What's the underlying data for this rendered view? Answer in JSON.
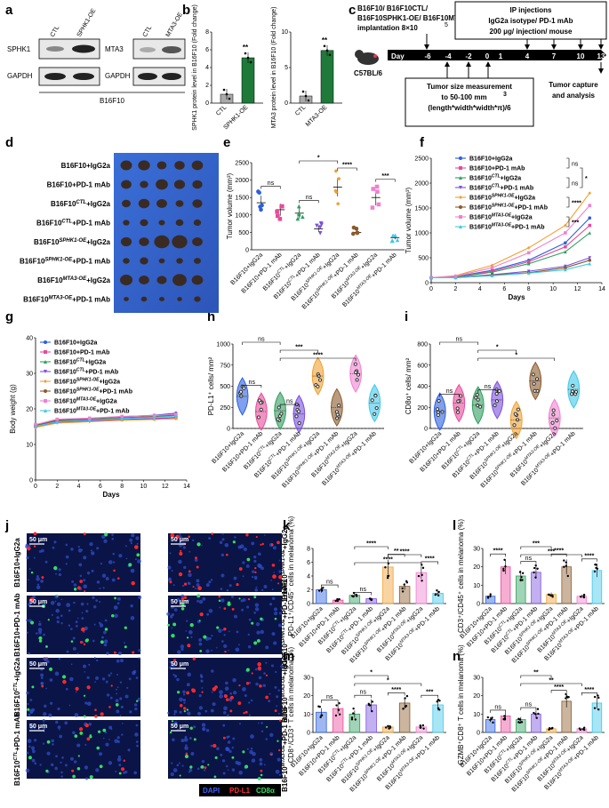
{
  "panels": [
    "a",
    "b",
    "c",
    "d",
    "e",
    "f",
    "g",
    "h",
    "i",
    "j",
    "k",
    "l",
    "m",
    "n"
  ],
  "colors": {
    "blue": "#2b5fe0",
    "pink": "#e84a9a",
    "green": "#2e9e5e",
    "purple": "#7a4fe0",
    "orange": "#f0a030",
    "brown": "#8b5a2b",
    "lpink": "#f080d0",
    "cyan": "#40c8e8",
    "dgreen": "#1f7a3a",
    "gray": "#888888",
    "darkred": "#a01010"
  },
  "a": {
    "labels": {
      "sphk1": "SPHK1",
      "gapdh": "GAPDH",
      "mta3": "MTA3",
      "ctl": "CTL",
      "sphk1oe": "SPHK1-OE",
      "mta3oe": "MTA3-OE",
      "cell": "B16F10"
    }
  },
  "b": {
    "charts": [
      {
        "ylabel": "SPHK1 protein level in B16F10 (Fold change)",
        "categories": [
          "CTL",
          "SPHK1-OE"
        ],
        "values": [
          1,
          5.1
        ],
        "ylim": [
          0,
          8
        ],
        "yticks": [
          "0",
          "2",
          "4",
          "6",
          "8"
        ],
        "sig": "**"
      },
      {
        "ylabel": "MTA3 protein level in B16F10 (Fold change)",
        "categories": [
          "CTL",
          "MTA3-OE"
        ],
        "values": [
          1,
          7.4
        ],
        "ylim": [
          0,
          10
        ],
        "yticks": [
          "0",
          "5",
          "10"
        ],
        "sig": "**"
      }
    ]
  },
  "c": {
    "implant_lines": [
      "B16F10/ B16F10",
      "/",
      "B16F10",
      "/ B16F10",
      "implantation 8×10",
      "5"
    ],
    "ip_lines": [
      "IP injections",
      "IgG2a isotype/ PD-1 mAb",
      "200 μg/ injection/ mouse"
    ],
    "measure_lines": [
      "Tumor size measurement",
      "to 50-100 mm",
      "3",
      "(length*width*width*π)/6"
    ],
    "capture_lines": [
      "Tumor capture",
      "and analysis"
    ],
    "mouse": "C57BL/6",
    "day_label": "Day",
    "days": [
      "-6",
      "-4",
      "-2",
      "0",
      "1",
      "4",
      "7",
      "10",
      "13"
    ]
  },
  "groups": [
    "B16F10+IgG2a",
    "B16F10+PD-1 mAb",
    "B16F10CTL+IgG2a",
    "B16F10CTL+PD-1 mAb",
    "B16F10SPHK1-OE+IgG2a",
    "B16F10SPHK1-OE+PD-1 mAb",
    "B16F10MTA3-OE+IgG2a",
    "B16F10MTA3-OE+PD-1 mAb"
  ],
  "group_parts": [
    [
      "B16F10",
      "",
      "+IgG2a"
    ],
    [
      "B16F10",
      "",
      "+PD-1 mAb"
    ],
    [
      "B16F10",
      "CTL",
      "+IgG2a"
    ],
    [
      "B16F10",
      "CTL",
      "+PD-1 mAb"
    ],
    [
      "B16F10",
      "SPHK1-OE",
      "+IgG2a"
    ],
    [
      "B16F10",
      "SPHK1-OE",
      "+PD-1 mAb"
    ],
    [
      "B16F10",
      "MTA3-OE",
      "+IgG2a"
    ],
    [
      "B16F10",
      "MTA3-OE",
      "+PD-1 mAb"
    ]
  ],
  "chart_data": [
    {
      "panel": "e",
      "type": "scatter",
      "ylabel": "Tumor volume (mm³)",
      "ylim": [
        0,
        2500
      ],
      "yticks": [
        0,
        500,
        1000,
        1500,
        2000,
        2500
      ],
      "means": [
        1350,
        1150,
        1050,
        600,
        1800,
        500,
        1500,
        350
      ],
      "sig": [
        {
          "pair": [
            0,
            1
          ],
          "text": "ns"
        },
        {
          "pair": [
            2,
            3
          ],
          "text": "ns"
        },
        {
          "pair": [
            2,
            4
          ],
          "text": "*"
        },
        {
          "pair": [
            4,
            5
          ],
          "text": "****"
        },
        {
          "pair": [
            6,
            7
          ],
          "text": "***"
        }
      ]
    },
    {
      "panel": "f",
      "type": "line",
      "ylabel": "Tumor volume (mm³)",
      "xlabel": "Days",
      "xlim": [
        0,
        14
      ],
      "ylim": [
        0,
        2500
      ],
      "yticks": [
        0,
        500,
        1000,
        1500,
        2000,
        2500
      ],
      "xticks": [
        0,
        2,
        4,
        6,
        8,
        10,
        12,
        14
      ],
      "x": [
        0,
        2,
        5,
        8,
        11,
        13
      ],
      "series": [
        {
          "name": "B16F10+IgG2a",
          "values": [
            100,
            120,
            250,
            450,
            800,
            1300
          ]
        },
        {
          "name": "B16F10+PD-1 mAb",
          "values": [
            100,
            115,
            230,
            420,
            720,
            1150
          ]
        },
        {
          "name": "B16F10CTL+IgG2a",
          "values": [
            100,
            110,
            210,
            380,
            620,
            1000
          ]
        },
        {
          "name": "B16F10CTL+PD-1 mAb",
          "values": [
            100,
            105,
            160,
            230,
            330,
            500
          ]
        },
        {
          "name": "B16F10SPHK1-OE+IgG2a",
          "values": [
            100,
            140,
            350,
            700,
            1150,
            1800
          ]
        },
        {
          "name": "B16F10SPHK1-OE+PD-1 mAb",
          "values": [
            100,
            100,
            150,
            200,
            300,
            450
          ]
        },
        {
          "name": "B16F10MTA3-OE+IgG2a",
          "values": [
            100,
            130,
            300,
            600,
            1000,
            1550
          ]
        },
        {
          "name": "B16F10MTA3-OE+PD-1 mAb",
          "values": [
            100,
            100,
            140,
            190,
            260,
            380
          ]
        }
      ],
      "sig": [
        "ns",
        "ns",
        "*",
        "****",
        "***"
      ]
    },
    {
      "panel": "g",
      "type": "line",
      "ylabel": "Body weight (g)",
      "xlabel": "Days",
      "xlim": [
        0,
        14
      ],
      "ylim": [
        0,
        40
      ],
      "yticks": [
        0,
        10,
        20,
        30,
        40
      ],
      "xticks": [
        0,
        2,
        4,
        6,
        8,
        10,
        12,
        14
      ],
      "x": [
        0,
        2,
        5,
        8,
        11,
        13
      ],
      "series": [
        {
          "name": "B16F10+IgG2a",
          "values": [
            15.5,
            17,
            17.3,
            17.8,
            18.2,
            18.8
          ]
        },
        {
          "name": "B16F10+PD-1 mAb",
          "values": [
            15,
            16.5,
            16.8,
            17,
            17.2,
            17.5
          ]
        },
        {
          "name": "B16F10CTL+IgG2a",
          "values": [
            15.2,
            16.8,
            17,
            17.4,
            17.8,
            18.2
          ]
        },
        {
          "name": "B16F10CTL+PD-1 mAb",
          "values": [
            15,
            16.2,
            16.6,
            17,
            17.3,
            17.6
          ]
        },
        {
          "name": "B16F10SPHK1-OE+IgG2a",
          "values": [
            14.8,
            16,
            16.4,
            16.8,
            17,
            17.2
          ]
        },
        {
          "name": "B16F10SPHK1-OE+PD-1 mAb",
          "values": [
            15.3,
            16.7,
            17.1,
            17.5,
            17.9,
            18.3
          ]
        },
        {
          "name": "B16F10MTA3-OE+IgG2a",
          "values": [
            15.6,
            17.1,
            17.4,
            17.9,
            18.1,
            18.5
          ]
        },
        {
          "name": "B16F10MTA3-OE+PD-1 mAb",
          "values": [
            15.1,
            16.4,
            16.9,
            17.3,
            17.6,
            18
          ]
        }
      ]
    },
    {
      "panel": "h",
      "type": "violin",
      "ylabel": "PD-L1⁺ cells/ mm²",
      "ylim": [
        0,
        1000
      ],
      "yticks": [
        0,
        250,
        500,
        750,
        1000
      ],
      "means": [
        380,
        200,
        210,
        170,
        620,
        250,
        650,
        300
      ],
      "sig": [
        {
          "pair": [
            0,
            1
          ],
          "text": "ns"
        },
        {
          "pair": [
            2,
            3
          ],
          "text": "ns"
        },
        {
          "pair": [
            0,
            2
          ],
          "text": "ns"
        },
        {
          "pair": [
            2,
            4
          ],
          "text": "***"
        },
        {
          "pair": [
            2,
            6
          ],
          "text": "****"
        }
      ]
    },
    {
      "panel": "i",
      "type": "violin",
      "ylabel": "CD8α⁺ cells/ mm²",
      "ylim": [
        0,
        800
      ],
      "yticks": [
        0,
        200,
        400,
        600,
        800
      ],
      "means": [
        160,
        240,
        220,
        270,
        80,
        450,
        100,
        370
      ],
      "sig": [
        {
          "pair": [
            0,
            1
          ],
          "text": "ns"
        },
        {
          "pair": [
            2,
            3
          ],
          "text": "ns"
        },
        {
          "pair": [
            0,
            2
          ],
          "text": "ns"
        },
        {
          "pair": [
            2,
            4
          ],
          "text": "*"
        },
        {
          "pair": [
            2,
            6
          ],
          "text": "*"
        }
      ]
    },
    {
      "panel": "k",
      "type": "bar",
      "ylabel": "PD-L1⁺/CD45⁻ cells in melanoma (%)",
      "ylim": [
        0,
        8
      ],
      "yticks": [
        0,
        2,
        4,
        6,
        8
      ],
      "values": [
        2.0,
        0.5,
        1.2,
        0.7,
        5.3,
        2.5,
        4.5,
        1.5
      ],
      "sig": [
        {
          "pair": [
            0,
            1
          ],
          "text": "ns"
        },
        {
          "pair": [
            2,
            3
          ],
          "text": "ns"
        },
        {
          "pair": [
            4,
            5
          ],
          "text": "**"
        },
        {
          "pair": [
            6,
            7
          ],
          "text": "****"
        },
        {
          "pair": [
            2,
            4
          ],
          "text": "****"
        },
        {
          "pair": [
            4,
            6
          ],
          "text": "****"
        },
        {
          "pair": [
            2,
            6
          ],
          "text": "****"
        }
      ]
    },
    {
      "panel": "l",
      "type": "bar",
      "ylabel": "CD3⁺/CD45⁺ cells in melanoma (%)",
      "ylim": [
        0,
        30
      ],
      "yticks": [
        0,
        10,
        20,
        30
      ],
      "values": [
        4,
        20,
        15,
        17,
        5,
        20,
        4,
        18
      ],
      "sig": [
        {
          "pair": [
            0,
            1
          ],
          "text": "****"
        },
        {
          "pair": [
            2,
            3
          ],
          "text": "ns"
        },
        {
          "pair": [
            4,
            5
          ],
          "text": "****"
        },
        {
          "pair": [
            6,
            7
          ],
          "text": "****"
        },
        {
          "pair": [
            2,
            4
          ],
          "text": "***"
        },
        {
          "pair": [
            2,
            6
          ],
          "text": "***"
        }
      ]
    },
    {
      "panel": "m",
      "type": "bar",
      "ylabel": "CD8⁺/CD3⁺ T cells in melanoma (%)",
      "ylim": [
        0,
        30
      ],
      "yticks": [
        0,
        10,
        20,
        30
      ],
      "values": [
        11,
        13,
        10,
        15,
        3,
        16,
        3,
        15
      ],
      "sig": [
        {
          "pair": [
            0,
            1
          ],
          "text": "ns"
        },
        {
          "pair": [
            2,
            3
          ],
          "text": "ns"
        },
        {
          "pair": [
            4,
            5
          ],
          "text": "****"
        },
        {
          "pair": [
            6,
            7
          ],
          "text": "***"
        },
        {
          "pair": [
            2,
            4
          ],
          "text": "*"
        },
        {
          "pair": [
            2,
            6
          ],
          "text": "*"
        }
      ]
    },
    {
      "panel": "n",
      "type": "bar",
      "ylabel": "GZMB⁺CD8⁺ T cells in melanoma (%)",
      "ylim": [
        0,
        30
      ],
      "yticks": [
        0,
        10,
        20,
        30
      ],
      "values": [
        7,
        9,
        7,
        10,
        2,
        17,
        2,
        16
      ],
      "sig": [
        {
          "pair": [
            0,
            1
          ],
          "text": "ns"
        },
        {
          "pair": [
            2,
            3
          ],
          "text": "ns"
        },
        {
          "pair": [
            4,
            5
          ],
          "text": "****"
        },
        {
          "pair": [
            6,
            7
          ],
          "text": "****"
        },
        {
          "pair": [
            2,
            4
          ],
          "text": "**"
        },
        {
          "pair": [
            2,
            6
          ],
          "text": "**"
        }
      ]
    }
  ],
  "j": {
    "scale": "50 μm",
    "legend": [
      "DAPI",
      "PD-L1",
      "CD8α"
    ],
    "legend_colors": [
      "#4060ff",
      "#ff3030",
      "#30e060"
    ]
  }
}
